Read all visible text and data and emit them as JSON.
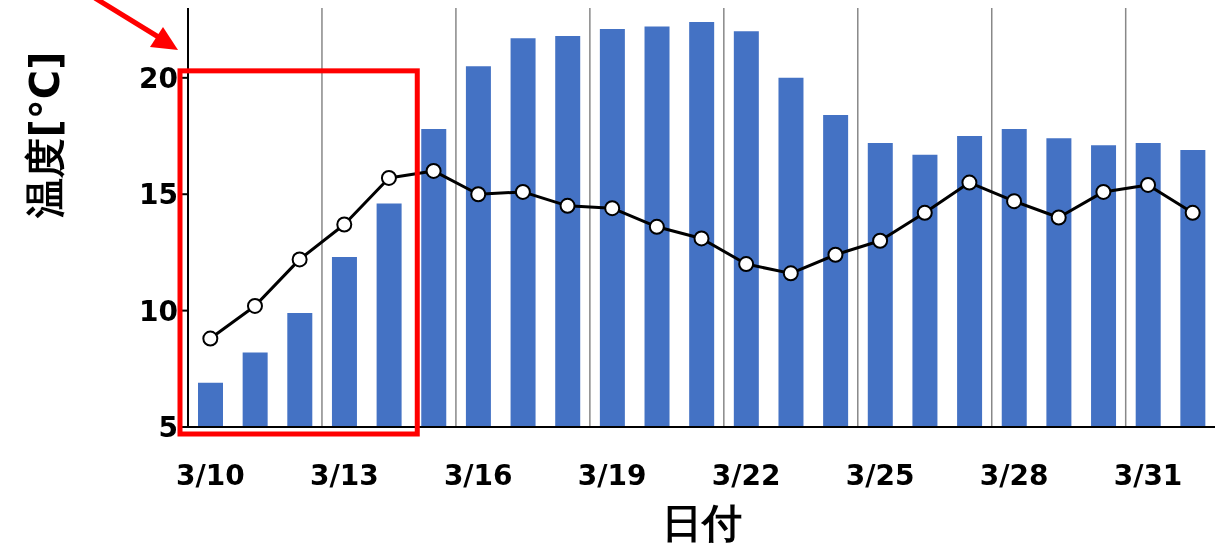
{
  "chart_data": {
    "type": "bar",
    "xlabel": "日付",
    "ylabel": "温度[°C]",
    "categories": [
      "3/10",
      null,
      null,
      "3/13",
      null,
      null,
      "3/16",
      null,
      null,
      "3/19",
      null,
      null,
      "3/22",
      null,
      null,
      "3/25",
      null,
      null,
      "3/28",
      null,
      null,
      "3/31",
      null
    ],
    "series": [
      {
        "color": "#4472c4",
        "values": [
          6.9,
          8.2,
          9.9,
          12.3,
          14.6,
          17.8,
          20.5,
          21.7,
          21.8,
          22.1,
          22.2,
          22.4,
          22.0,
          20.0,
          18.4,
          17.2,
          16.7,
          17.5,
          17.8,
          17.4,
          17.1,
          17.2,
          16.9
        ]
      },
      {
        "type": "line",
        "color": "#000000",
        "marker": "circle",
        "line_style": "solid",
        "values": [
          8.8,
          10.2,
          12.2,
          13.7,
          15.7,
          16.0,
          15.0,
          15.1,
          14.5,
          14.4,
          13.6,
          13.1,
          12.0,
          11.6,
          12.4,
          13.0,
          14.2,
          15.5,
          14.7,
          14.0,
          15.1,
          15.4,
          14.2
        ]
      }
    ],
    "ylim": [
      5,
      23
    ],
    "yticks": [
      5,
      10,
      15,
      20
    ],
    "grid": "x"
  }
}
